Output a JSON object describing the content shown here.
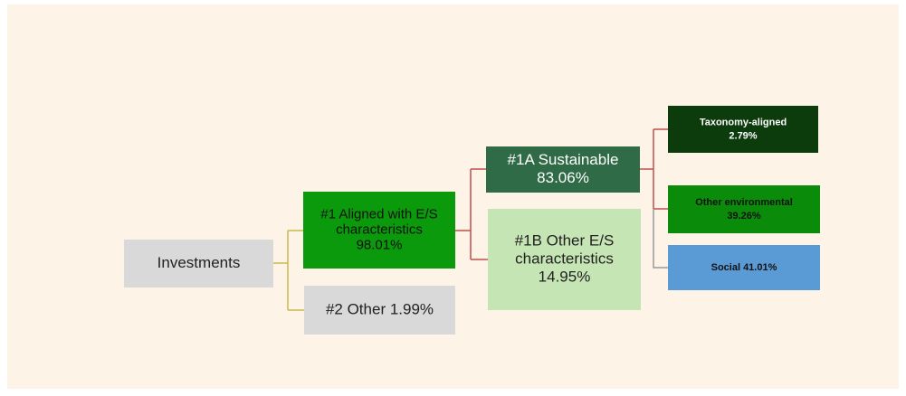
{
  "nodes": [
    {
      "lines": [
        "Investments"
      ]
    },
    {
      "lines": [
        "#1 Aligned with E/S",
        "characteristics",
        "98.01%"
      ]
    },
    {
      "lines": [
        "#2 Other 1.99%"
      ]
    },
    {
      "lines": [
        "#1A Sustainable",
        "83.06%"
      ]
    },
    {
      "lines": [
        "#1B Other E/S",
        "characteristics",
        "14.95%"
      ]
    },
    {
      "lines": [
        "Taxonomy-aligned",
        "2.79%"
      ]
    },
    {
      "lines": [
        "Other environmental",
        "39.26%"
      ]
    },
    {
      "lines": [
        "Social 41.01%"
      ]
    }
  ]
}
